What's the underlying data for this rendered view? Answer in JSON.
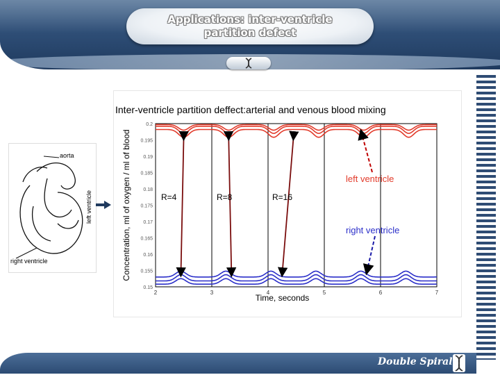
{
  "slide": {
    "title_line1": "Applications: inter-ventricle",
    "title_line2": "partition defect",
    "footer_text": "Double Spiral"
  },
  "colors": {
    "header": "#2c4b73",
    "left_ventricle": "#e23a2a",
    "right_ventricle": "#2b2fc9",
    "arrow": "#7a0d0d"
  },
  "diagram": {
    "labels": {
      "aorta": "aorta",
      "left_ventricle": "left ventricle",
      "right_ventricle": "right ventricle"
    }
  },
  "chart_data": {
    "type": "line",
    "title": "Inter-ventricle partition deffect:arterial and venous blood mixing",
    "xlabel": "Time, seconds",
    "ylabel": "Concentration, ml of oxygen / ml of blood",
    "xlim": [
      2,
      7
    ],
    "ylim": [
      0.15,
      0.2
    ],
    "x_ticks": [
      "2",
      "3",
      "4",
      "5",
      "6",
      "7"
    ],
    "y_ticks": [
      "0.2",
      "0.195",
      "0.19",
      "0.185",
      "0.18",
      "0.175",
      "0.17",
      "0.165",
      "0.16",
      "0.155",
      "0.15"
    ],
    "grid_vertical": true,
    "period": 0.8,
    "series": [
      {
        "group": "left",
        "R": 4,
        "base": 0.1982,
        "dip": 0.1958,
        "dip_time": 2.5
      },
      {
        "group": "left",
        "R": 8,
        "base": 0.1992,
        "dip": 0.197,
        "dip_time": 2.5
      },
      {
        "group": "left",
        "R": 16,
        "base": 0.1997,
        "dip": 0.198,
        "dip_time": 2.5
      },
      {
        "group": "right",
        "R": 4,
        "base": 0.153,
        "peak": 0.1548,
        "peak_time": 2.45
      },
      {
        "group": "right",
        "R": 8,
        "base": 0.1518,
        "peak": 0.1537,
        "peak_time": 2.45
      },
      {
        "group": "right",
        "R": 16,
        "base": 0.1508,
        "peak": 0.1525,
        "peak_time": 2.45
      }
    ],
    "annotations": {
      "left_ventricle": "left ventricle",
      "right_ventricle": "right ventricle",
      "r4": "R=4",
      "r8": "R=8",
      "r16": "R=16"
    }
  }
}
